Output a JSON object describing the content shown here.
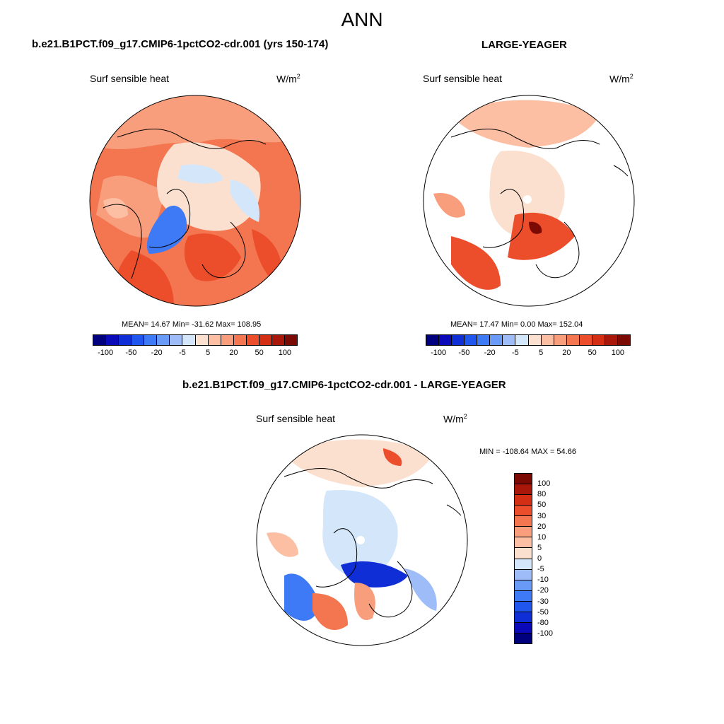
{
  "title": "ANN",
  "colors": {
    "blue": [
      "#00007f",
      "#0a0ab8",
      "#0f2ed6",
      "#2156ee",
      "#3e7af5",
      "#6a9af7",
      "#9ebcf7",
      "#d4e6f9"
    ],
    "red": [
      "#fce0cf",
      "#fdbfa4",
      "#f99e7c",
      "#f47650",
      "#ec4d2a",
      "#d42e15",
      "#a8170a",
      "#7c0a04"
    ],
    "land_outline": "#000000"
  },
  "panels": [
    {
      "title": "b.e21.B1PCT.f09_g17.CMIP6-1pctCO2-cdr.001 (yrs 150-174)",
      "variable": "Surf sensible heat",
      "units": "W/m",
      "units_sup": "2",
      "stats": "MEAN=  14.67  Min= -31.62  Max= 108.95",
      "colorbar_ticks": [
        "-100",
        "-50",
        "-20",
        "-5",
        "5",
        "20",
        "50",
        "100"
      ]
    },
    {
      "title": "LARGE-YEAGER",
      "variable": "Surf sensible heat",
      "units": "W/m",
      "units_sup": "2",
      "stats": "MEAN=  17.47  Min=   0.00  Max= 152.04",
      "colorbar_ticks": [
        "-100",
        "-50",
        "-20",
        "-5",
        "5",
        "20",
        "50",
        "100"
      ]
    },
    {
      "title": "b.e21.B1PCT.f09_g17.CMIP6-1pctCO2-cdr.001 - LARGE-YEAGER",
      "variable": "Surf sensible heat",
      "units": "W/m",
      "units_sup": "2",
      "stats": "MIN = -108.64 MAX =  54.66",
      "colorbar_ticks": [
        "100",
        "80",
        "50",
        "30",
        "20",
        "10",
        "5",
        "0",
        "-5",
        "-10",
        "-20",
        "-30",
        "-50",
        "-80",
        "-100"
      ]
    }
  ]
}
